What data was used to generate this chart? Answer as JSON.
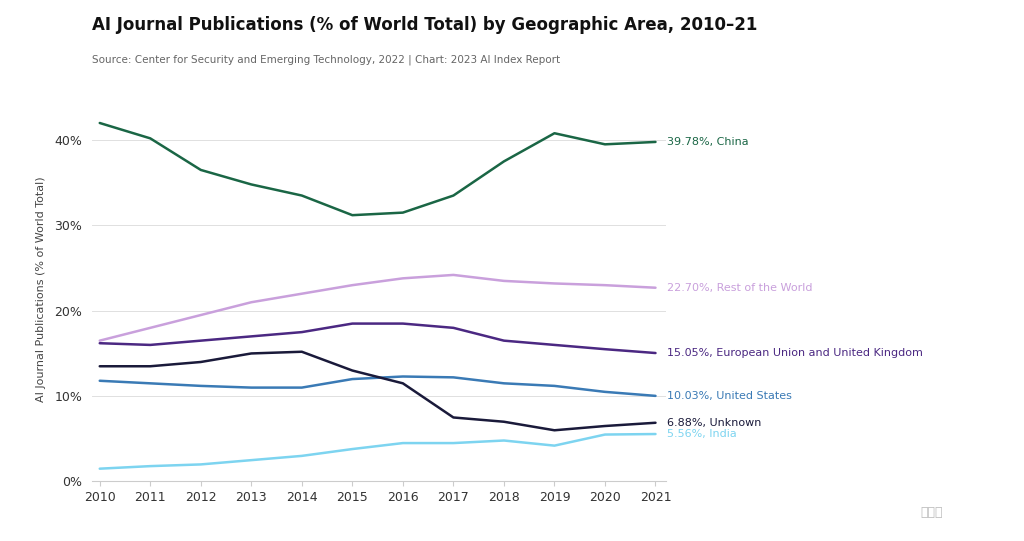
{
  "title": "AI Journal Publications (% of World Total) by Geographic Area, 2010–21",
  "subtitle": "Source: Center for Security and Emerging Technology, 2022 | Chart: 2023 AI Index Report",
  "ylabel": "AI Journal Publications (% of World Total)",
  "years": [
    2010,
    2011,
    2012,
    2013,
    2014,
    2015,
    2016,
    2017,
    2018,
    2019,
    2020,
    2021
  ],
  "series": [
    {
      "label": "39.78%, China",
      "color": "#1a6645",
      "linewidth": 1.8,
      "data": [
        42.0,
        40.2,
        36.5,
        34.8,
        33.5,
        31.2,
        31.5,
        33.5,
        37.5,
        40.8,
        39.5,
        39.78
      ]
    },
    {
      "label": "22.70%, Rest of the World",
      "color": "#c9a0dc",
      "linewidth": 1.8,
      "data": [
        16.5,
        18.0,
        19.5,
        21.0,
        22.0,
        23.0,
        23.8,
        24.2,
        23.5,
        23.2,
        23.0,
        22.7
      ]
    },
    {
      "label": "15.05%, European Union and United Kingdom",
      "color": "#4b2882",
      "linewidth": 1.8,
      "data": [
        16.2,
        16.0,
        16.5,
        17.0,
        17.5,
        18.5,
        18.5,
        18.0,
        16.5,
        16.0,
        15.5,
        15.05
      ]
    },
    {
      "label": "10.03%, United States",
      "color": "#3a7ab5",
      "linewidth": 1.8,
      "data": [
        11.8,
        11.5,
        11.2,
        11.0,
        11.0,
        12.0,
        12.3,
        12.2,
        11.5,
        11.2,
        10.5,
        10.03
      ]
    },
    {
      "label": "6.88%, Unknown",
      "color": "#1a1a3a",
      "linewidth": 1.8,
      "data": [
        13.5,
        13.5,
        14.0,
        15.0,
        15.2,
        13.0,
        11.5,
        7.5,
        7.0,
        6.0,
        6.5,
        6.88
      ]
    },
    {
      "label": "5.56%, India",
      "color": "#7dd4f0",
      "linewidth": 1.8,
      "data": [
        1.5,
        1.8,
        2.0,
        2.5,
        3.0,
        3.8,
        4.5,
        4.5,
        4.8,
        4.2,
        5.5,
        5.56
      ]
    }
  ],
  "ylim": [
    0,
    45
  ],
  "yticks": [
    0,
    10,
    20,
    30,
    40
  ],
  "background_color": "#ffffff",
  "grid_color": "#e0e0e0",
  "title_fontsize": 12,
  "subtitle_fontsize": 7.5,
  "label_fontsize": 8,
  "ylabel_fontsize": 8,
  "tick_fontsize": 9
}
